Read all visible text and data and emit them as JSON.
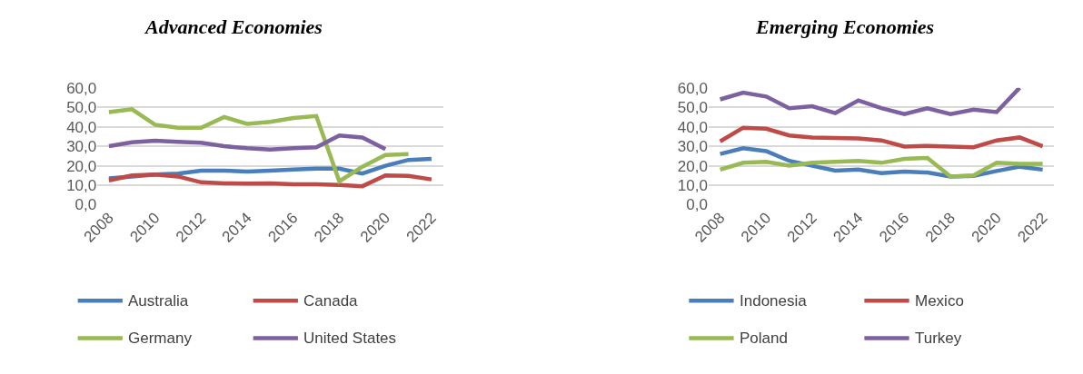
{
  "chart_data": [
    {
      "type": "line",
      "title": "Advanced Economies",
      "x": [
        2008,
        2009,
        2010,
        2011,
        2012,
        2013,
        2014,
        2015,
        2016,
        2017,
        2018,
        2019,
        2020,
        2021,
        2022
      ],
      "xlim": [
        2007.5,
        2022.5
      ],
      "xticks": [
        2008,
        2010,
        2012,
        2014,
        2016,
        2018,
        2020,
        2022
      ],
      "ylim": [
        0,
        60
      ],
      "yticks": [
        {
          "value": 0,
          "label": "0,0"
        },
        {
          "value": 10,
          "label": "10,0"
        },
        {
          "value": 20,
          "label": "20,0"
        },
        {
          "value": 30,
          "label": "30,0"
        },
        {
          "value": 40,
          "label": "40,0"
        },
        {
          "value": 50,
          "label": "50,0"
        },
        {
          "value": 60,
          "label": "60,0"
        }
      ],
      "grid": "y",
      "legend": "bottom",
      "marker": "none",
      "line_style": "solid",
      "series": [
        {
          "name": "Australia",
          "color": "#4a7ebb",
          "values": [
            13.5,
            14.5,
            15.5,
            16,
            17.5,
            17.5,
            17,
            17.5,
            18,
            18.5,
            18.5,
            16,
            20,
            23,
            23.5
          ]
        },
        {
          "name": "Canada",
          "color": "#be4b48",
          "values": [
            12.5,
            15,
            15.5,
            14.5,
            11.5,
            11,
            10.8,
            11,
            10.5,
            10.5,
            10.2,
            9.5,
            15,
            14.8,
            13
          ]
        },
        {
          "name": "Germany",
          "color": "#98b954",
          "values": [
            47.5,
            49,
            41,
            39.5,
            39.5,
            45,
            41.5,
            42.5,
            44.5,
            45.5,
            12,
            19.5,
            25.5,
            26,
            null
          ]
        },
        {
          "name": "United States",
          "color": "#7d60a0",
          "values": [
            30,
            32,
            32.8,
            32.2,
            31.8,
            30,
            29,
            28.3,
            29,
            29.5,
            35.5,
            34.5,
            28.5,
            null,
            null
          ]
        }
      ]
    },
    {
      "type": "line",
      "title": "Emerging Economies",
      "x": [
        2008,
        2009,
        2010,
        2011,
        2012,
        2013,
        2014,
        2015,
        2016,
        2017,
        2018,
        2019,
        2020,
        2021,
        2022
      ],
      "xlim": [
        2007.5,
        2022.5
      ],
      "xticks": [
        2008,
        2010,
        2012,
        2014,
        2016,
        2018,
        2020,
        2022
      ],
      "ylim": [
        0,
        60
      ],
      "yticks": [
        {
          "value": 0,
          "label": "0,0"
        },
        {
          "value": 10,
          "label": "10,0"
        },
        {
          "value": 20,
          "label": "20,0"
        },
        {
          "value": 30,
          "label": "30,0"
        },
        {
          "value": 40,
          "label": "40,0"
        },
        {
          "value": 50,
          "label": "50,0"
        },
        {
          "value": 60,
          "label": "60,0"
        }
      ],
      "grid": "y",
      "legend": "bottom",
      "marker": "none",
      "line_style": "solid",
      "series": [
        {
          "name": "Indonesia",
          "color": "#4a7ebb",
          "values": [
            26,
            29,
            27.5,
            22.5,
            20,
            17.5,
            18,
            16.2,
            17,
            16.5,
            14.5,
            14.8,
            17.3,
            19.5,
            18
          ]
        },
        {
          "name": "Mexico",
          "color": "#be4b48",
          "values": [
            32.5,
            39.5,
            39,
            35.5,
            34.5,
            34.2,
            34,
            33,
            29.8,
            30.2,
            29.8,
            29.5,
            33,
            34.5,
            30
          ]
        },
        {
          "name": "Poland",
          "color": "#98b954",
          "values": [
            18,
            21.5,
            22,
            20,
            21.5,
            22,
            22.5,
            21.5,
            23.5,
            24,
            14.5,
            15,
            21.5,
            21,
            21
          ]
        },
        {
          "name": "Turkey",
          "color": "#7d60a0",
          "values": [
            54,
            57.5,
            55.5,
            49.5,
            50.5,
            47,
            53.5,
            49.5,
            46.5,
            49.5,
            46.5,
            48.8,
            47.5,
            60,
            null
          ]
        }
      ]
    }
  ]
}
